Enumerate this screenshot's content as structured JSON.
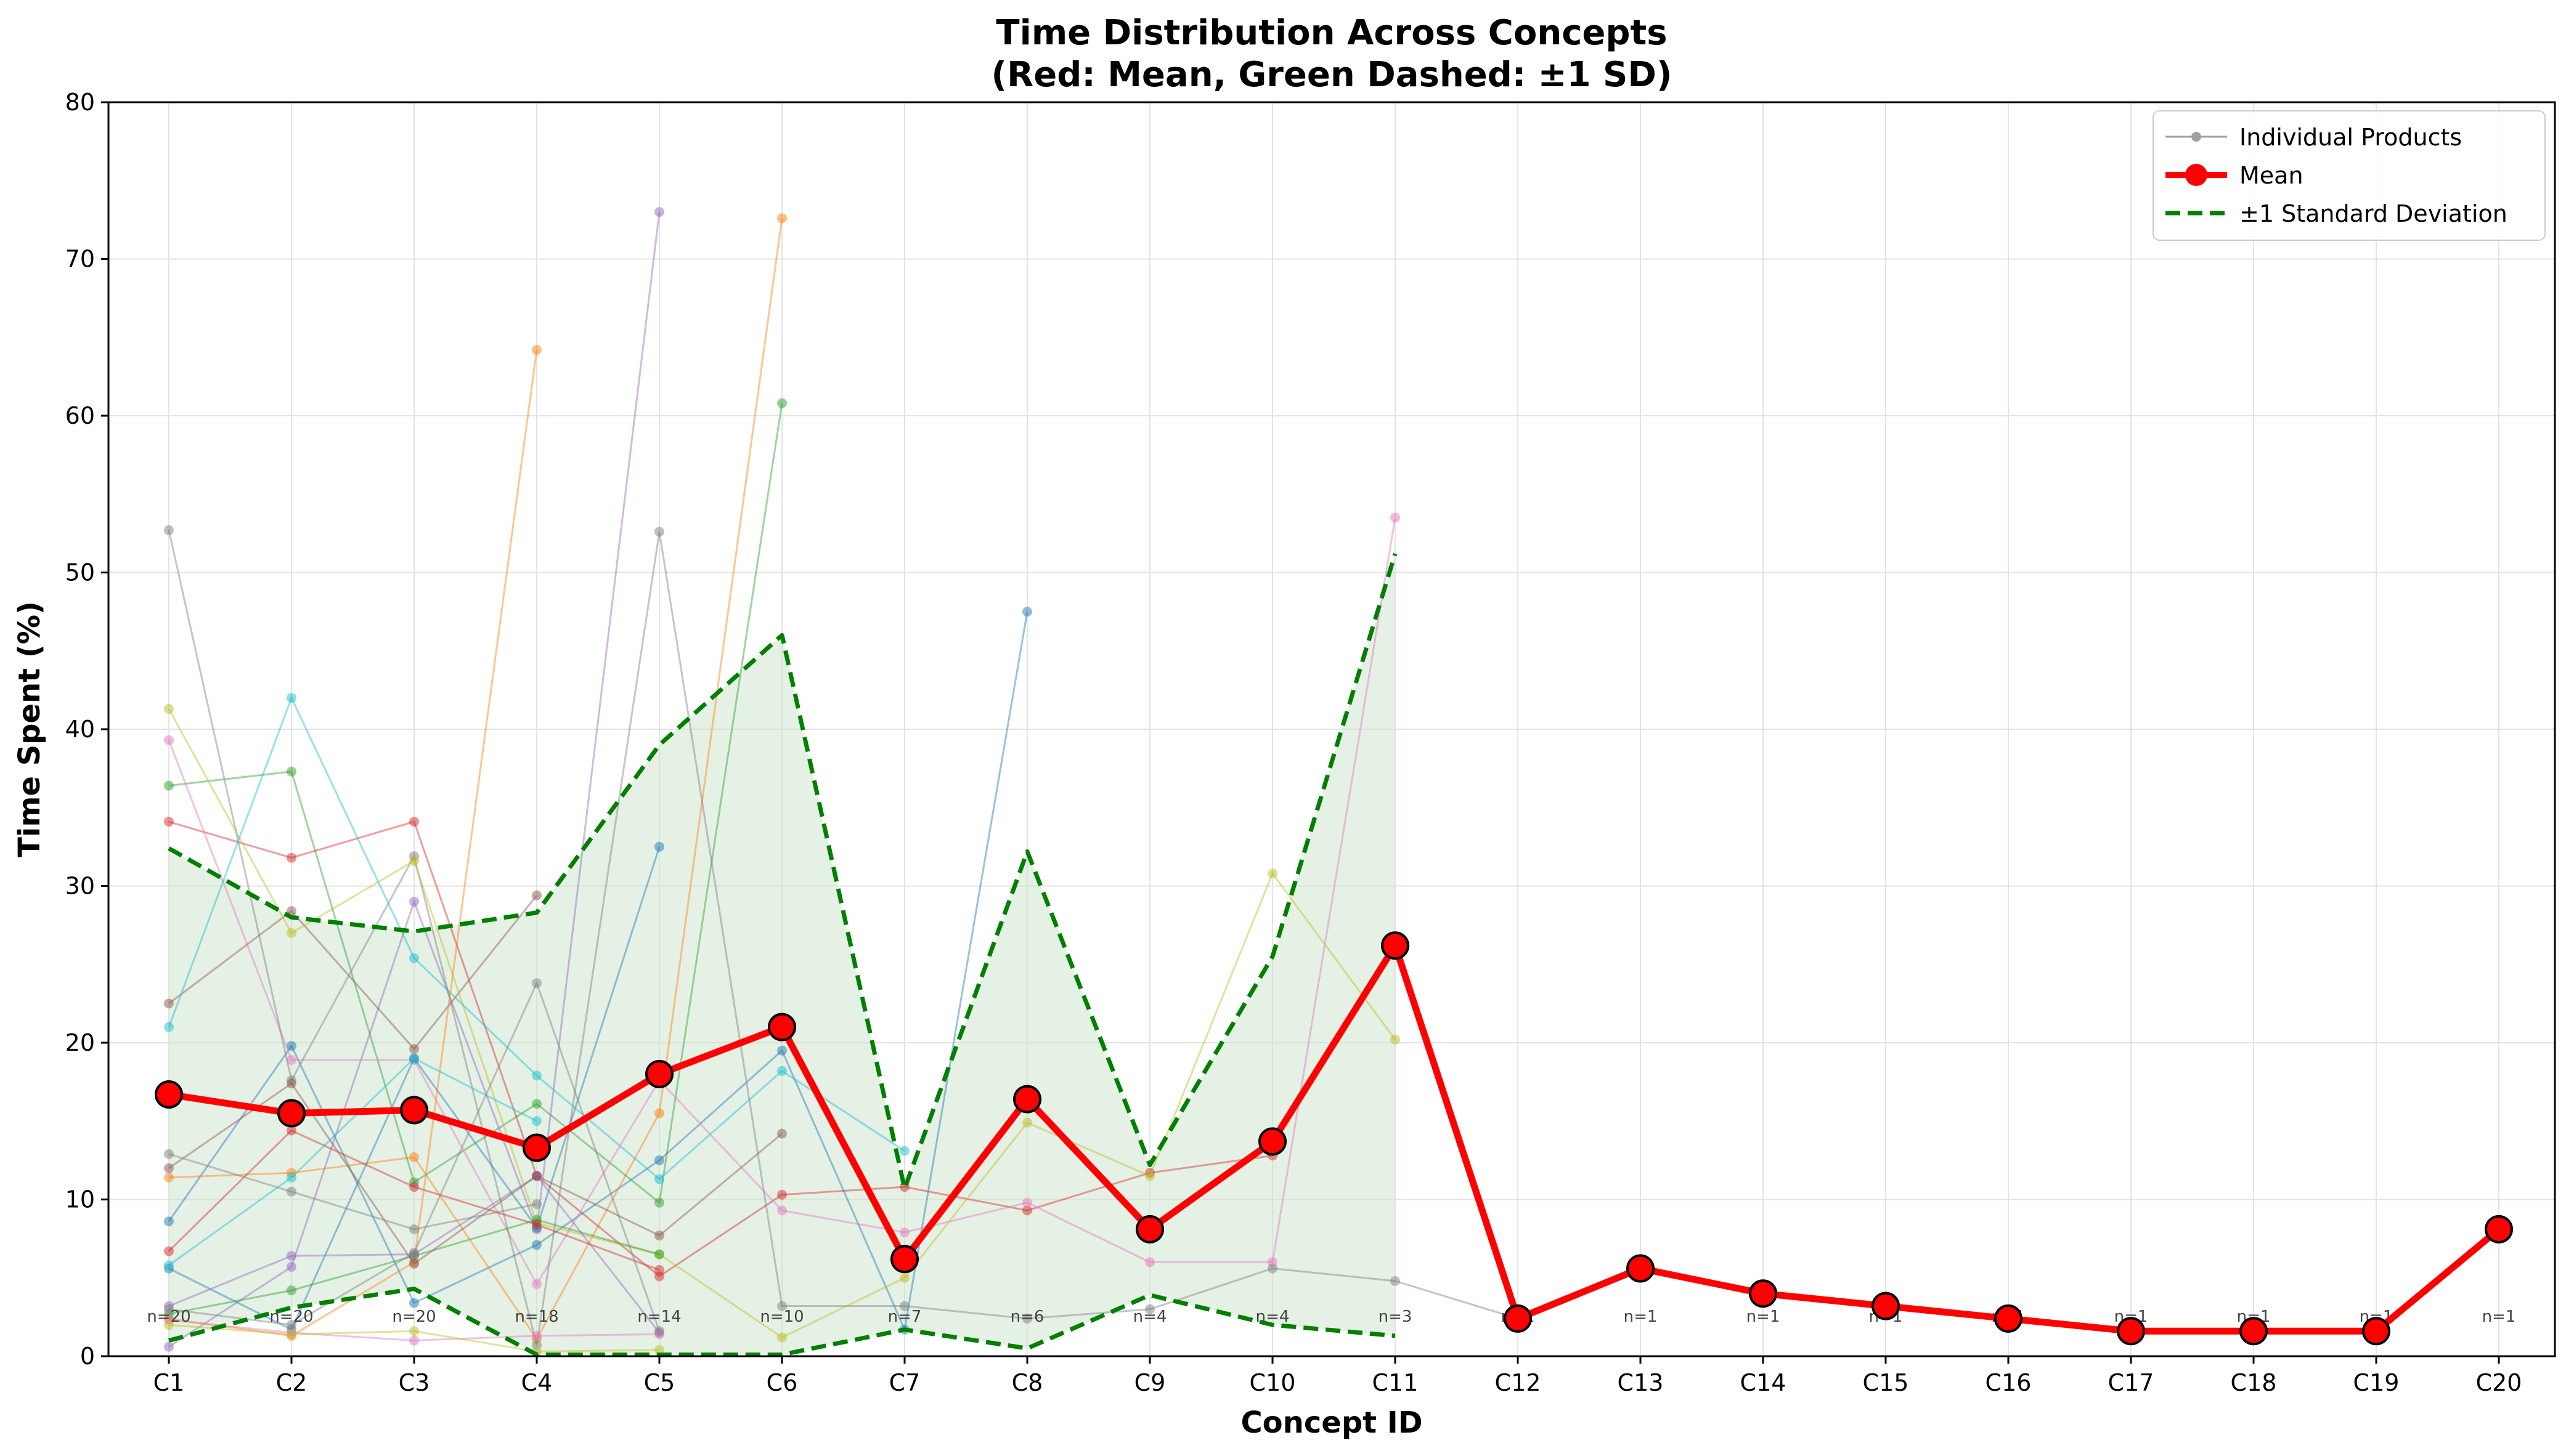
{
  "chart_data": {
    "type": "line",
    "title": "Time Distribution Across Concepts",
    "subtitle": "(Red: Mean, Green Dashed: ±1 SD)",
    "xlabel": "Concept ID",
    "ylabel": "Time Spent (%)",
    "ylim": [
      0,
      80
    ],
    "yticks": [
      0,
      10,
      20,
      30,
      40,
      50,
      60,
      70,
      80
    ],
    "grid": true,
    "legend_position": "top-right",
    "categories": [
      "C1",
      "C2",
      "C3",
      "C4",
      "C5",
      "C6",
      "C7",
      "C8",
      "C9",
      "C10",
      "C11",
      "C12",
      "C13",
      "C14",
      "C15",
      "C16",
      "C17",
      "C18",
      "C19",
      "C20"
    ],
    "n_labels": [
      "n=20",
      "n=20",
      "n=20",
      "n=18",
      "n=14",
      "n=10",
      "n=7",
      "n=6",
      "n=4",
      "n=4",
      "n=3",
      "n=1",
      "n=1",
      "n=1",
      "n=1",
      "n=1",
      "n=1",
      "n=1",
      "n=1",
      "n=1"
    ],
    "legend": [
      {
        "label": "Individual Products",
        "style": "individual"
      },
      {
        "label": "Mean",
        "style": "mean"
      },
      {
        "label": "±1 Standard Deviation",
        "style": "sd"
      }
    ],
    "mean": [
      16.7,
      15.5,
      15.7,
      13.3,
      18.0,
      21.0,
      6.2,
      16.4,
      8.1,
      13.7,
      26.2,
      2.4,
      5.6,
      4.0,
      3.2,
      2.4,
      1.6,
      1.6,
      1.6,
      8.1
    ],
    "sd_upper": [
      32.4,
      28.0,
      27.1,
      28.3,
      39.0,
      46.0,
      10.7,
      32.2,
      12.2,
      25.5,
      51.2
    ],
    "sd_lower": [
      1.0,
      3.1,
      4.3,
      0.1,
      0.1,
      0.1,
      1.7,
      0.5,
      3.9,
      2.0,
      1.3
    ],
    "colors": {
      "mean": "#ff0000",
      "sd": "#007f00",
      "band": "#cfe6cf",
      "individual_legend": "#a0a0a0"
    },
    "products": [
      {
        "color": "#1f77b4",
        "values": [
          8.6,
          19.8,
          3.4,
          7.1,
          12.5,
          19.5,
          1.7,
          47.5
        ]
      },
      {
        "color": "#ff7f0e",
        "values": [
          11.4,
          11.7,
          12.7,
          1.1,
          15.5,
          72.6
        ]
      },
      {
        "color": "#2ca02c",
        "values": [
          36.4,
          37.3,
          11.1,
          16.1,
          9.8,
          60.8
        ]
      },
      {
        "color": "#d62728",
        "values": [
          34.1,
          31.8,
          34.1,
          11.5,
          5.1,
          10.3,
          10.8,
          9.3,
          11.7,
          12.8
        ]
      },
      {
        "color": "#9467bd",
        "values": [
          0.6,
          5.7,
          29.0,
          8.1,
          73.0
        ]
      },
      {
        "color": "#8c564b",
        "values": [
          22.5,
          28.4,
          19.6,
          29.4
        ]
      },
      {
        "color": "#e377c2",
        "values": [
          39.3,
          18.9,
          18.9,
          4.6,
          17.6,
          9.3,
          7.9,
          9.8,
          6.0,
          6.0,
          53.5
        ]
      },
      {
        "color": "#7f7f7f",
        "values": [
          52.7,
          17.6,
          31.9,
          0.7,
          52.6,
          3.2,
          3.2,
          2.4,
          3.0,
          5.6,
          4.8,
          2.4
        ]
      },
      {
        "color": "#bcbd22",
        "values": [
          41.3,
          27.0,
          31.6,
          8.5,
          6.5,
          1.2,
          5.0,
          14.9,
          11.5,
          30.8,
          20.2
        ]
      },
      {
        "color": "#17becf",
        "values": [
          21.0,
          42.0,
          25.4,
          17.9,
          11.3,
          18.2,
          13.1
        ]
      },
      {
        "color": "#1f77b4",
        "values": [
          5.6,
          1.7,
          19.0,
          8.2,
          32.5
        ]
      },
      {
        "color": "#ff7f0e",
        "values": [
          2.4,
          1.3,
          6.0,
          64.2
        ]
      },
      {
        "color": "#2ca02c",
        "values": [
          2.7,
          4.2,
          6.4,
          8.7,
          6.5
        ]
      },
      {
        "color": "#d62728",
        "values": [
          6.7,
          14.4,
          10.8,
          8.4,
          5.5
        ]
      },
      {
        "color": "#9467bd",
        "values": [
          3.2,
          6.4,
          6.5,
          11.5,
          1.5
        ]
      },
      {
        "color": "#8c564b",
        "values": [
          12.0,
          17.4,
          5.9,
          11.5,
          7.7,
          14.2
        ]
      },
      {
        "color": "#e377c2",
        "values": [
          2.3,
          1.5,
          1.0,
          1.3,
          1.4
        ]
      },
      {
        "color": "#7f7f7f",
        "values": [
          12.9,
          10.5,
          8.1,
          9.7
        ]
      },
      {
        "color": "#bcbd22",
        "values": [
          2.0,
          1.4,
          1.6,
          0.3,
          0.4
        ]
      },
      {
        "color": "#17becf",
        "values": [
          5.8,
          11.4,
          19.0,
          15.0
        ]
      },
      {
        "color": "#7f7f7f",
        "values": [
          3.0,
          2.0,
          6.6,
          23.8,
          1.6
        ]
      }
    ]
  }
}
